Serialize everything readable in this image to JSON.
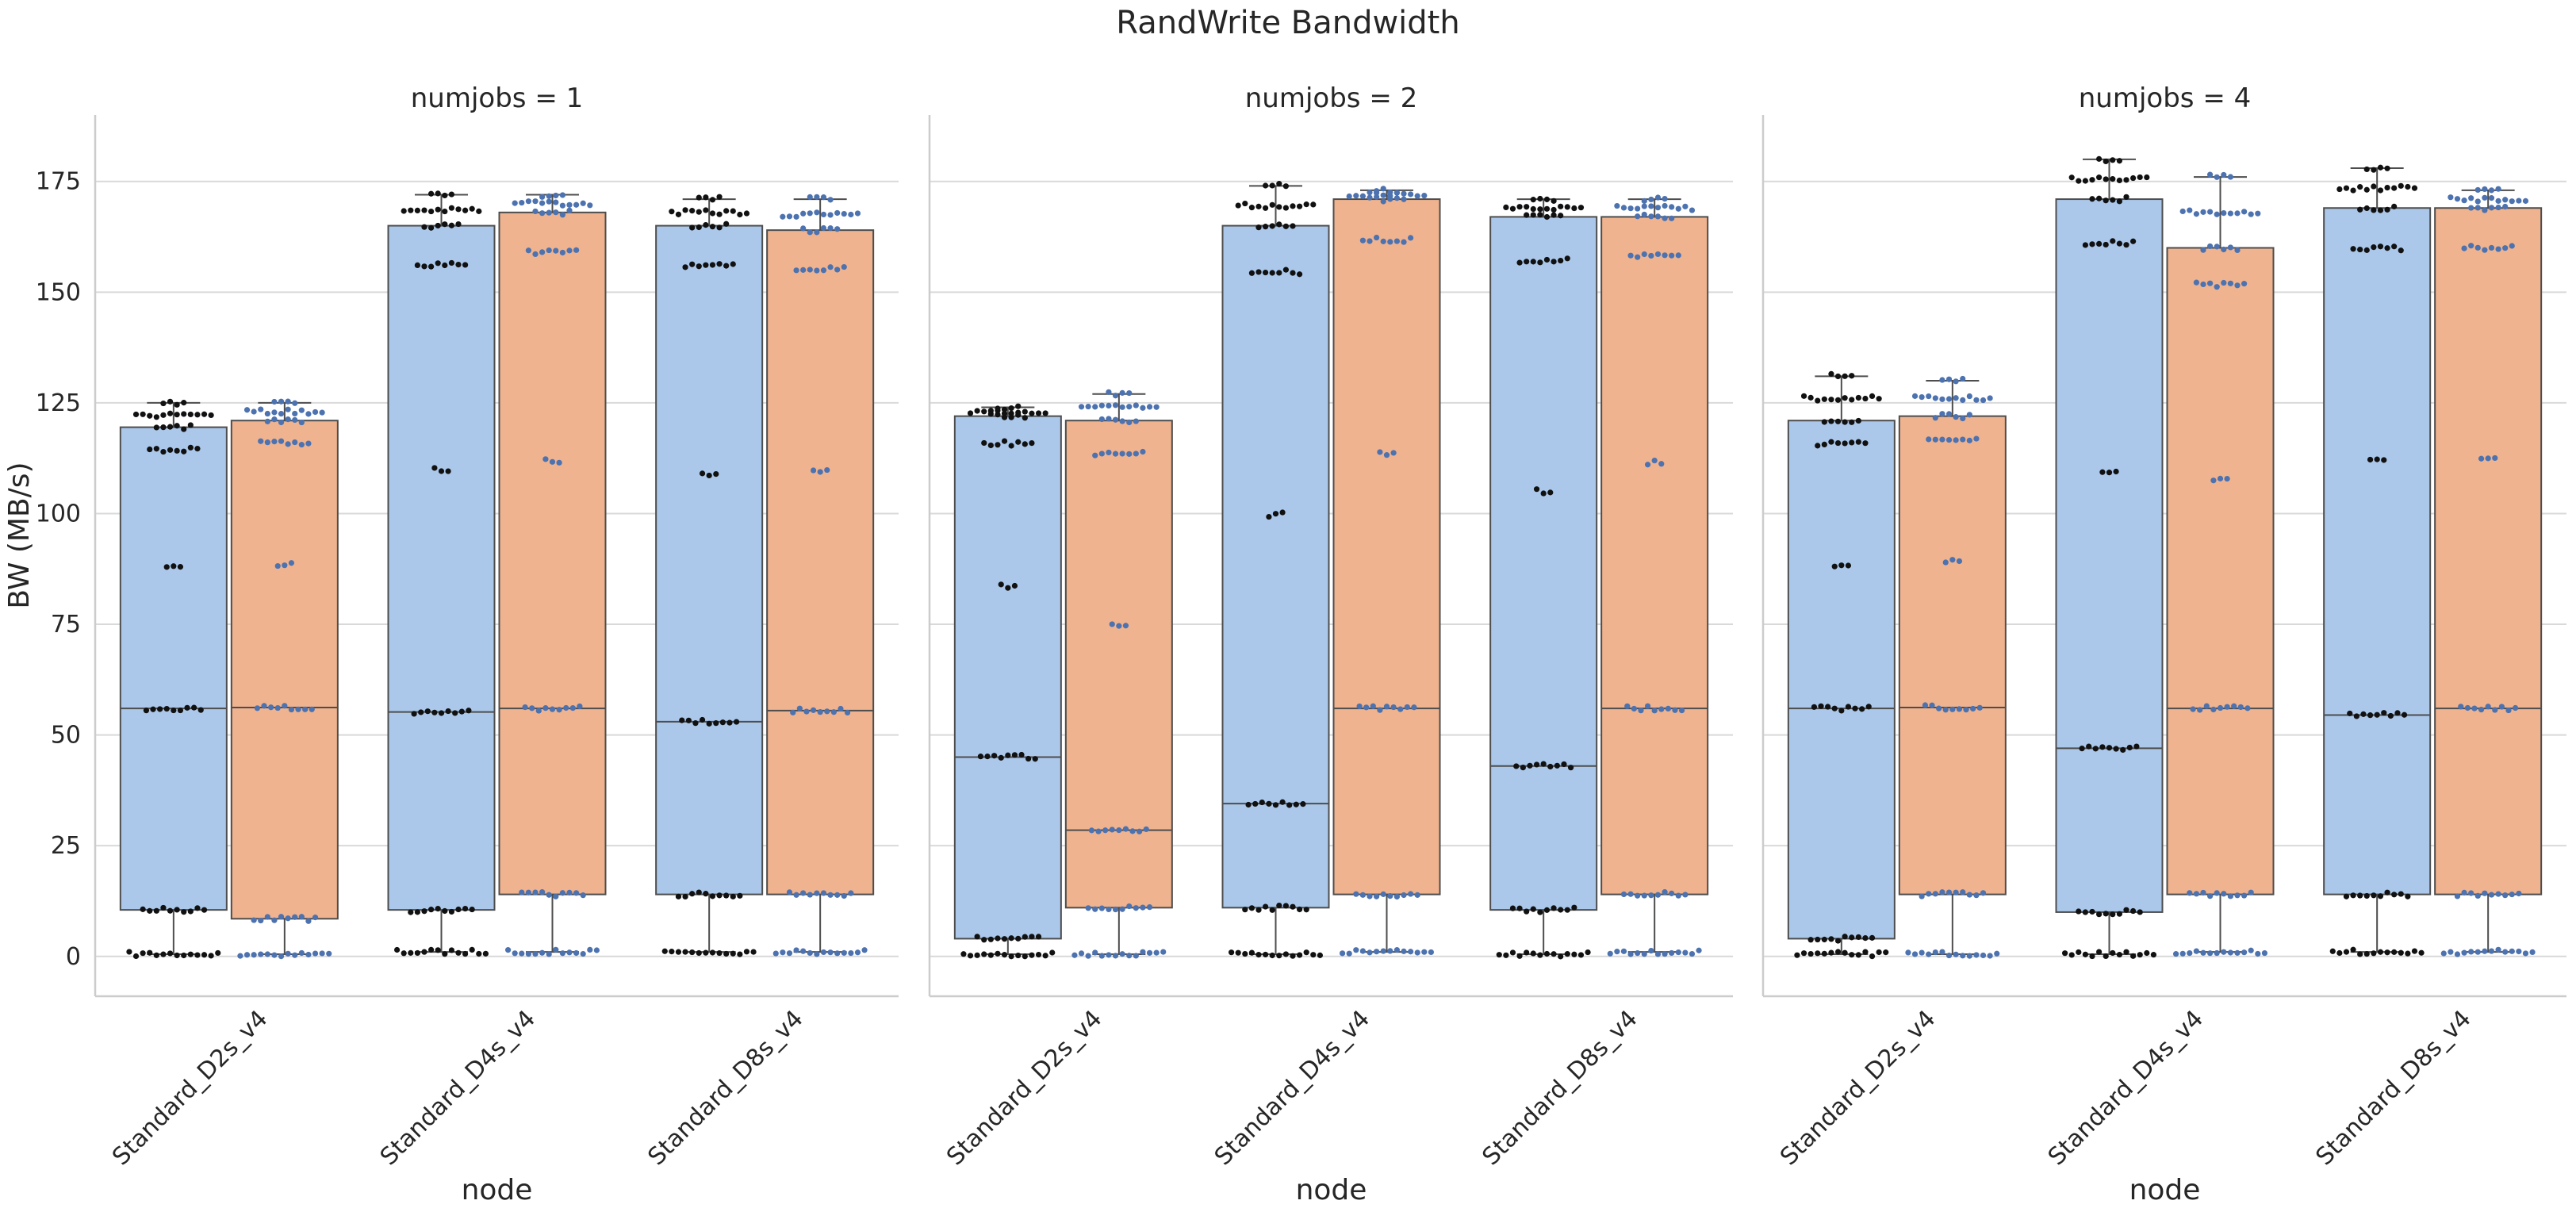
{
  "chart_data": {
    "type": "box",
    "title": "RandWrite Bandwidth",
    "ylabel": "BW (MB/s)",
    "xlabel": "node",
    "ylim": [
      -9,
      190
    ],
    "yticks": [
      0,
      25,
      50,
      75,
      100,
      125,
      150,
      175
    ],
    "grid": true,
    "categories": [
      "Standard_D2s_v4",
      "Standard_D4s_v4",
      "Standard_D8s_v4"
    ],
    "hue_colors": [
      "#abc8ea",
      "#efb38f"
    ],
    "swarm_colors": [
      "#111111",
      "#4c72b0"
    ],
    "panels": [
      {
        "title": "numjobs = 1",
        "boxes": [
          [
            {
              "q1": 10.5,
              "median": 56,
              "q3": 119.5,
              "whislo": 0.5,
              "whishi": 125
            },
            {
              "q1": 8.5,
              "median": 56.2,
              "q3": 121,
              "whislo": 0.5,
              "whishi": 125
            }
          ],
          [
            {
              "q1": 10.5,
              "median": 55.2,
              "q3": 165,
              "whislo": 1,
              "whishi": 172
            },
            {
              "q1": 14,
              "median": 56,
              "q3": 168,
              "whislo": 1,
              "whishi": 172
            }
          ],
          [
            {
              "q1": 14,
              "median": 53,
              "q3": 165,
              "whislo": 1,
              "whishi": 171
            },
            {
              "q1": 14,
              "median": 55.5,
              "q3": 164,
              "whislo": 1,
              "whishi": 171
            }
          ]
        ]
      },
      {
        "title": "numjobs = 2",
        "boxes": [
          [
            {
              "q1": 4,
              "median": 45,
              "q3": 122,
              "whislo": 0.5,
              "whishi": 124
            },
            {
              "q1": 11,
              "median": 28.5,
              "q3": 121,
              "whislo": 0.5,
              "whishi": 127
            }
          ],
          [
            {
              "q1": 11,
              "median": 34.5,
              "q3": 165,
              "whislo": 0.5,
              "whishi": 174
            },
            {
              "q1": 14,
              "median": 56,
              "q3": 171,
              "whislo": 1,
              "whishi": 173
            }
          ],
          [
            {
              "q1": 10.5,
              "median": 43,
              "q3": 167,
              "whislo": 0.5,
              "whishi": 171
            },
            {
              "q1": 14,
              "median": 56,
              "q3": 167,
              "whislo": 1,
              "whishi": 171
            }
          ]
        ]
      },
      {
        "title": "numjobs = 4",
        "boxes": [
          [
            {
              "q1": 4,
              "median": 56,
              "q3": 121,
              "whislo": 0.5,
              "whishi": 131
            },
            {
              "q1": 14,
              "median": 56.2,
              "q3": 122,
              "whislo": 0.5,
              "whishi": 130
            }
          ],
          [
            {
              "q1": 10,
              "median": 47,
              "q3": 171,
              "whislo": 0.5,
              "whishi": 180
            },
            {
              "q1": 14,
              "median": 56,
              "q3": 160,
              "whislo": 1,
              "whishi": 176
            }
          ],
          [
            {
              "q1": 14,
              "median": 54.5,
              "q3": 169,
              "whislo": 1,
              "whishi": 178
            },
            {
              "q1": 14,
              "median": 56,
              "q3": 169,
              "whislo": 1,
              "whishi": 173
            }
          ]
        ]
      }
    ]
  }
}
